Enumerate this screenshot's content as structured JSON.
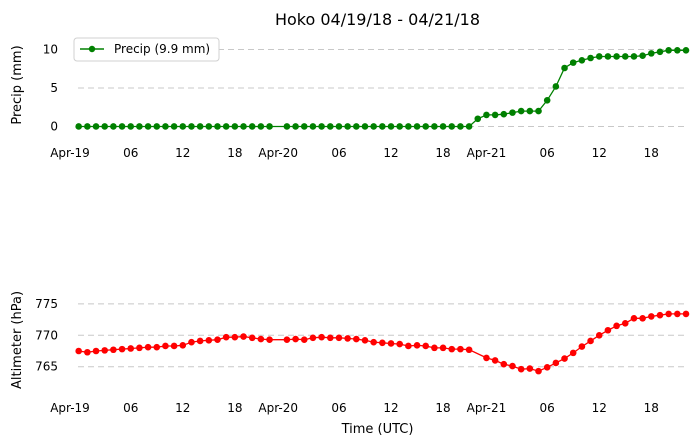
{
  "chart_data": [
    {
      "type": "line",
      "title": "Hoko 04/19/18 - 04/21/18",
      "ylabel": "Precip (mm)",
      "xlabel": "",
      "ylim": [
        -1.5,
        11.5
      ],
      "xlim": [
        -1,
        70
      ],
      "yticks": [
        0,
        5,
        10
      ],
      "ytick_labels": [
        "0",
        "5",
        "10"
      ],
      "xticks": [
        -1,
        6,
        12,
        18,
        23,
        30,
        36,
        42,
        47,
        54,
        60,
        66
      ],
      "xtick_labels": [
        "Apr-19",
        "06",
        "12",
        "18",
        "Apr-20",
        "06",
        "12",
        "18",
        "Apr-21",
        "06",
        "12",
        "18"
      ],
      "grid": "horizontal dashed",
      "legend": "top-left",
      "color": "#008000",
      "series": [
        {
          "name": "Precip (9.9 mm)",
          "color": "#008000",
          "x": [
            0,
            1,
            2,
            3,
            4,
            5,
            6,
            7,
            8,
            9,
            10,
            11,
            12,
            13,
            14,
            15,
            16,
            17,
            18,
            19,
            20,
            21,
            22,
            24,
            25,
            26,
            27,
            28,
            29,
            30,
            31,
            32,
            33,
            34,
            35,
            36,
            37,
            38,
            39,
            40,
            41,
            42,
            43,
            44,
            45,
            46,
            47,
            48,
            49,
            50,
            51,
            52,
            53,
            54,
            55,
            56,
            57,
            58,
            59,
            60,
            61,
            62,
            63,
            64,
            65,
            66,
            67,
            68,
            69,
            70
          ],
          "y": [
            0,
            0,
            0,
            0,
            0,
            0,
            0,
            0,
            0,
            0,
            0,
            0,
            0,
            0,
            0,
            0,
            0,
            0,
            0,
            0,
            0,
            0,
            0,
            0,
            0,
            0,
            0,
            0,
            0,
            0,
            0,
            0,
            0,
            0,
            0,
            0,
            0,
            0,
            0,
            0,
            0,
            0,
            0,
            0,
            0.0,
            1.0,
            1.5,
            1.5,
            1.6,
            1.8,
            2.0,
            2.0,
            2.0,
            3.4,
            5.2,
            7.6,
            8.3,
            8.6,
            8.9,
            9.1,
            9.1,
            9.1,
            9.1,
            9.1,
            9.2,
            9.5,
            9.7,
            9.9,
            9.9,
            9.9
          ]
        }
      ]
    },
    {
      "type": "line",
      "title": "",
      "ylabel": "Altimeter (hPa)",
      "xlabel": "Time (UTC)",
      "ylim": [
        760.5,
        778
      ],
      "xlim": [
        -1,
        70
      ],
      "yticks": [
        765,
        770,
        775
      ],
      "ytick_labels": [
        "765",
        "770",
        "775"
      ],
      "xticks": [
        -1,
        6,
        12,
        18,
        23,
        30,
        36,
        42,
        47,
        54,
        60,
        66
      ],
      "xtick_labels": [
        "Apr-19",
        "06",
        "12",
        "18",
        "Apr-20",
        "06",
        "12",
        "18",
        "Apr-21",
        "06",
        "12",
        "18"
      ],
      "grid": "horizontal dashed",
      "color": "#ff0000",
      "series": [
        {
          "color": "#ff0000",
          "x": [
            0,
            1,
            2,
            3,
            4,
            5,
            6,
            7,
            8,
            9,
            10,
            11,
            12,
            13,
            14,
            15,
            16,
            17,
            18,
            19,
            20,
            21,
            22,
            24,
            25,
            26,
            27,
            28,
            29,
            30,
            31,
            32,
            33,
            34,
            35,
            36,
            37,
            38,
            39,
            40,
            41,
            42,
            43,
            44,
            45,
            47,
            48,
            49,
            50,
            51,
            52,
            53,
            54,
            55,
            56,
            57,
            58,
            59,
            60,
            61,
            62,
            63,
            64,
            65,
            66,
            67,
            68,
            69,
            70
          ],
          "y": [
            767.5,
            767.3,
            767.5,
            767.6,
            767.7,
            767.8,
            767.9,
            768.0,
            768.1,
            768.1,
            768.3,
            768.3,
            768.4,
            768.9,
            769.1,
            769.2,
            769.3,
            769.7,
            769.7,
            769.8,
            769.6,
            769.4,
            769.3,
            769.3,
            769.4,
            769.3,
            769.6,
            769.7,
            769.6,
            769.6,
            769.5,
            769.4,
            769.2,
            768.9,
            768.8,
            768.7,
            768.6,
            768.3,
            768.4,
            768.3,
            768.0,
            768.0,
            767.8,
            767.8,
            767.7,
            766.4,
            766.0,
            765.4,
            765.1,
            764.6,
            764.7,
            764.3,
            764.9,
            765.6,
            766.3,
            767.2,
            768.2,
            769.1,
            770.0,
            770.8,
            771.5,
            771.9,
            772.7,
            772.7,
            773.0,
            773.2,
            773.4,
            773.4,
            773.4
          ]
        }
      ]
    }
  ]
}
